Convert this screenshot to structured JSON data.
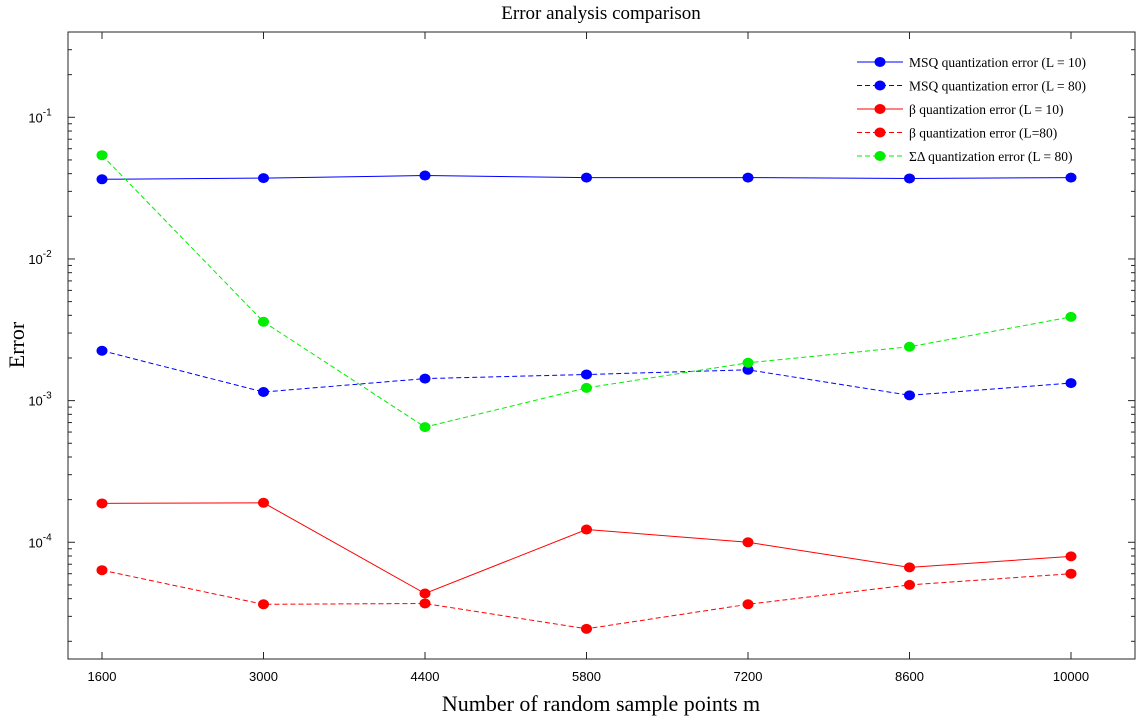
{
  "chart_data": {
    "type": "line",
    "title": "Error analysis comparison",
    "xlabel": "Number of random sample points m",
    "ylabel": "Error",
    "yscale": "log",
    "x": [
      1600,
      3000,
      4400,
      5800,
      7200,
      8600,
      10000
    ],
    "xticks": [
      "1600",
      "3000",
      "4400",
      "5800",
      "7200",
      "8600",
      "10000"
    ],
    "ylim": [
      1.5e-05,
      0.4
    ],
    "yticks": [
      {
        "value": 0.1,
        "base": "10",
        "exp": "-1"
      },
      {
        "value": 0.01,
        "base": "10",
        "exp": "-2"
      },
      {
        "value": 0.001,
        "base": "10",
        "exp": "-3"
      },
      {
        "value": 0.0001,
        "base": "10",
        "exp": "-4"
      }
    ],
    "grid": false,
    "legend_position": "top-right",
    "series": [
      {
        "name": "MSQ quantization error (L = 10)",
        "color": "#0000ff",
        "dash": "solid",
        "values": [
          0.0365,
          0.0372,
          0.0388,
          0.0375,
          0.0375,
          0.037,
          0.0375
        ]
      },
      {
        "name": "MSQ quantization error (L = 80)",
        "color": "#0000ff",
        "dash": "dashed",
        "values": [
          0.00225,
          0.00115,
          0.00143,
          0.00153,
          0.00165,
          0.00109,
          0.00133
        ]
      },
      {
        "name": "β quantization error (L = 10)",
        "color": "#ff0000",
        "dash": "solid",
        "values": [
          0.000188,
          0.00019,
          4.35e-05,
          0.000123,
          0.0001,
          6.65e-05,
          7.95e-05
        ]
      },
      {
        "name": "β quantization error (L=80)",
        "color": "#ff0000",
        "dash": "dashed",
        "values": [
          6.35e-05,
          3.65e-05,
          3.7e-05,
          2.45e-05,
          3.65e-05,
          5e-05,
          6e-05
        ]
      },
      {
        "name": "ΣΔ quantization error (L = 80)",
        "color": "#00ee00",
        "dash": "dashed",
        "values": [
          0.054,
          0.0036,
          0.00065,
          0.00123,
          0.00185,
          0.0024,
          0.0039
        ]
      }
    ]
  }
}
